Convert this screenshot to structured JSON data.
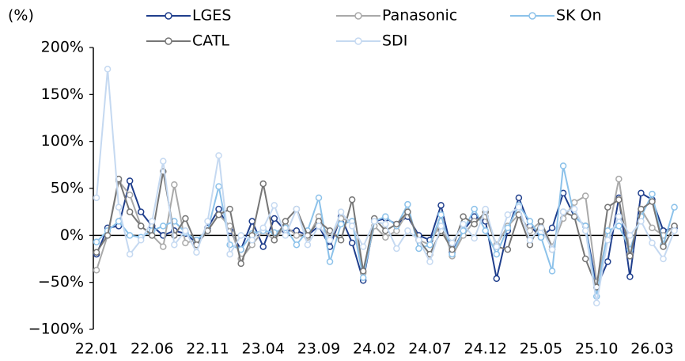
{
  "chart_data": {
    "type": "line",
    "y_label": "(%)",
    "categories": [
      "22.01",
      null,
      null,
      null,
      null,
      "22.06",
      null,
      null,
      null,
      null,
      "22.11",
      null,
      null,
      null,
      null,
      "23.04",
      null,
      null,
      null,
      null,
      "23.09",
      null,
      null,
      null,
      null,
      "24.02",
      null,
      null,
      null,
      null,
      "24.07",
      null,
      null,
      null,
      null,
      "24.12",
      null,
      null,
      null,
      null,
      "25.05",
      null,
      null,
      null,
      null,
      "25.10",
      null,
      null,
      null,
      null,
      "26.03",
      null,
      null
    ],
    "ylim": [
      -100,
      200
    ],
    "yticks": [
      {
        "value": -100,
        "label": "−100%"
      },
      {
        "value": -50,
        "label": "−50%"
      },
      {
        "value": 0,
        "label": "0%"
      },
      {
        "value": 50,
        "label": "50%"
      },
      {
        "value": 100,
        "label": "100%"
      },
      {
        "value": 150,
        "label": "150%"
      },
      {
        "value": 200,
        "label": "200%"
      }
    ],
    "series": [
      {
        "name": "LGES",
        "color": "#1f3e8c",
        "values": [
          -20,
          8,
          10,
          58,
          25,
          10,
          0,
          5,
          2,
          -8,
          8,
          28,
          5,
          -15,
          15,
          -12,
          18,
          5,
          5,
          0,
          10,
          -12,
          20,
          -8,
          -48,
          15,
          18,
          12,
          20,
          0,
          -5,
          32,
          -18,
          5,
          20,
          15,
          -46,
          5,
          40,
          10,
          -2,
          8,
          45,
          20,
          10,
          -55,
          -28,
          40,
          -44,
          45,
          38,
          5,
          8
        ]
      },
      {
        "name": "Panasonic",
        "color": "#a9a9a9",
        "values": [
          -37,
          0,
          58,
          43,
          10,
          0,
          -12,
          54,
          -8,
          -5,
          5,
          22,
          10,
          -25,
          -10,
          5,
          -5,
          10,
          0,
          -2,
          20,
          -5,
          18,
          15,
          -40,
          10,
          -2,
          5,
          25,
          -5,
          -10,
          15,
          -22,
          0,
          15,
          20,
          -10,
          10,
          22,
          5,
          15,
          -12,
          18,
          35,
          42,
          -50,
          0,
          60,
          -20,
          28,
          8,
          0,
          10
        ]
      },
      {
        "name": "SK On",
        "color": "#8cc2ea",
        "values": [
          -7,
          5,
          15,
          0,
          -2,
          5,
          10,
          15,
          3,
          -5,
          5,
          52,
          -10,
          -15,
          2,
          5,
          3,
          8,
          -10,
          5,
          40,
          -28,
          12,
          15,
          -45,
          15,
          20,
          10,
          33,
          -14,
          -10,
          22,
          -20,
          5,
          28,
          5,
          -20,
          8,
          32,
          15,
          -2,
          -38,
          74,
          20,
          10,
          -65,
          5,
          10,
          -15,
          20,
          44,
          -10,
          30
        ]
      },
      {
        "name": "CATL",
        "color": "#767676",
        "values": [
          -18,
          0,
          60,
          25,
          10,
          0,
          68,
          0,
          18,
          -10,
          5,
          22,
          28,
          -30,
          0,
          55,
          -5,
          15,
          28,
          0,
          15,
          5,
          -5,
          38,
          -38,
          18,
          5,
          12,
          25,
          -5,
          -20,
          5,
          -15,
          20,
          12,
          25,
          -12,
          -15,
          22,
          -10,
          15,
          -15,
          25,
          20,
          -25,
          -55,
          30,
          38,
          -22,
          28,
          36,
          -12,
          10
        ]
      },
      {
        "name": "SDI",
        "color": "#c5d9f1",
        "values": [
          40,
          177,
          30,
          -20,
          -5,
          15,
          79,
          -10,
          5,
          -18,
          15,
          85,
          -20,
          0,
          -5,
          8,
          32,
          0,
          28,
          -10,
          10,
          -5,
          25,
          10,
          -12,
          15,
          12,
          -14,
          5,
          -5,
          -28,
          10,
          -8,
          12,
          -3,
          28,
          -12,
          22,
          30,
          -5,
          8,
          -15,
          25,
          28,
          5,
          -72,
          -5,
          20,
          0,
          15,
          -8,
          -25,
          5
        ]
      }
    ]
  }
}
